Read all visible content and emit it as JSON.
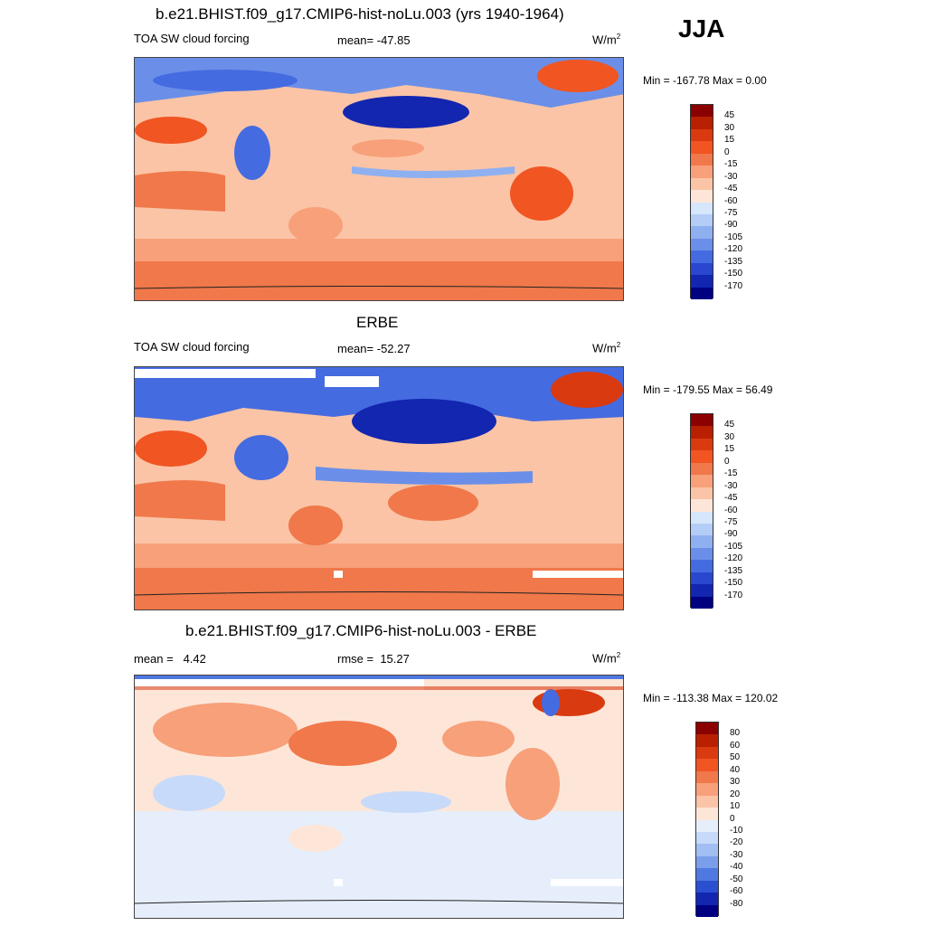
{
  "season": "JJA",
  "panels": [
    {
      "title": "b.e21.BHIST.f09_g17.CMIP6-hist-noLu.003 (yrs 1940-1964)",
      "variable": "TOA SW cloud forcing",
      "stat_label": "mean=",
      "stat_value": "-47.85",
      "units": "W/m",
      "units_sup": "2",
      "minmax": "Min = -167.78 Max =    0.00",
      "colorbar": {
        "labels": [
          "45",
          "30",
          "15",
          "0",
          "-15",
          "-30",
          "-45",
          "-60",
          "-75",
          "-90",
          "-105",
          "-120",
          "-135",
          "-150",
          "-170"
        ],
        "colors": [
          "#8b0000",
          "#b82000",
          "#d93a10",
          "#f05522",
          "#f0784a",
          "#f7a07a",
          "#fbc4a6",
          "#fde6d8",
          "#d6e6fb",
          "#b4cdf7",
          "#8fb0f0",
          "#6b8fe8",
          "#456be0",
          "#2a47d0",
          "#1226b0",
          "#000080"
        ]
      }
    },
    {
      "title": "ERBE",
      "variable": "TOA SW cloud forcing",
      "stat_label": "mean=",
      "stat_value": "-52.27",
      "units": "W/m",
      "units_sup": "2",
      "minmax": "Min = -179.55 Max =  56.49",
      "colorbar": {
        "labels": [
          "45",
          "30",
          "15",
          "0",
          "-15",
          "-30",
          "-45",
          "-60",
          "-75",
          "-90",
          "-105",
          "-120",
          "-135",
          "-150",
          "-170"
        ],
        "colors": [
          "#8b0000",
          "#b82000",
          "#d93a10",
          "#f05522",
          "#f0784a",
          "#f7a07a",
          "#fbc4a6",
          "#fde6d8",
          "#d6e6fb",
          "#b4cdf7",
          "#8fb0f0",
          "#6b8fe8",
          "#456be0",
          "#2a47d0",
          "#1226b0",
          "#000080"
        ]
      }
    },
    {
      "title": "b.e21.BHIST.f09_g17.CMIP6-hist-noLu.003 - ERBE",
      "variable": "",
      "stat_label": "mean =",
      "stat_value": "4.42",
      "stat2_label": "rmse =",
      "stat2_value": "15.27",
      "units": "W/m",
      "units_sup": "2",
      "minmax": "Min = -113.38 Max = 120.02",
      "colorbar": {
        "labels": [
          "80",
          "60",
          "50",
          "40",
          "30",
          "20",
          "10",
          "0",
          "-10",
          "-20",
          "-30",
          "-40",
          "-50",
          "-60",
          "-80"
        ],
        "colors": [
          "#8b0000",
          "#b82000",
          "#d93a10",
          "#f05522",
          "#f0784a",
          "#f7a07a",
          "#fbc4a6",
          "#fde6d8",
          "#e6eefb",
          "#c8dafa",
          "#a2bff3",
          "#7b9eea",
          "#4f78e0",
          "#2a4fd0",
          "#1226b0",
          "#000080"
        ]
      }
    }
  ]
}
